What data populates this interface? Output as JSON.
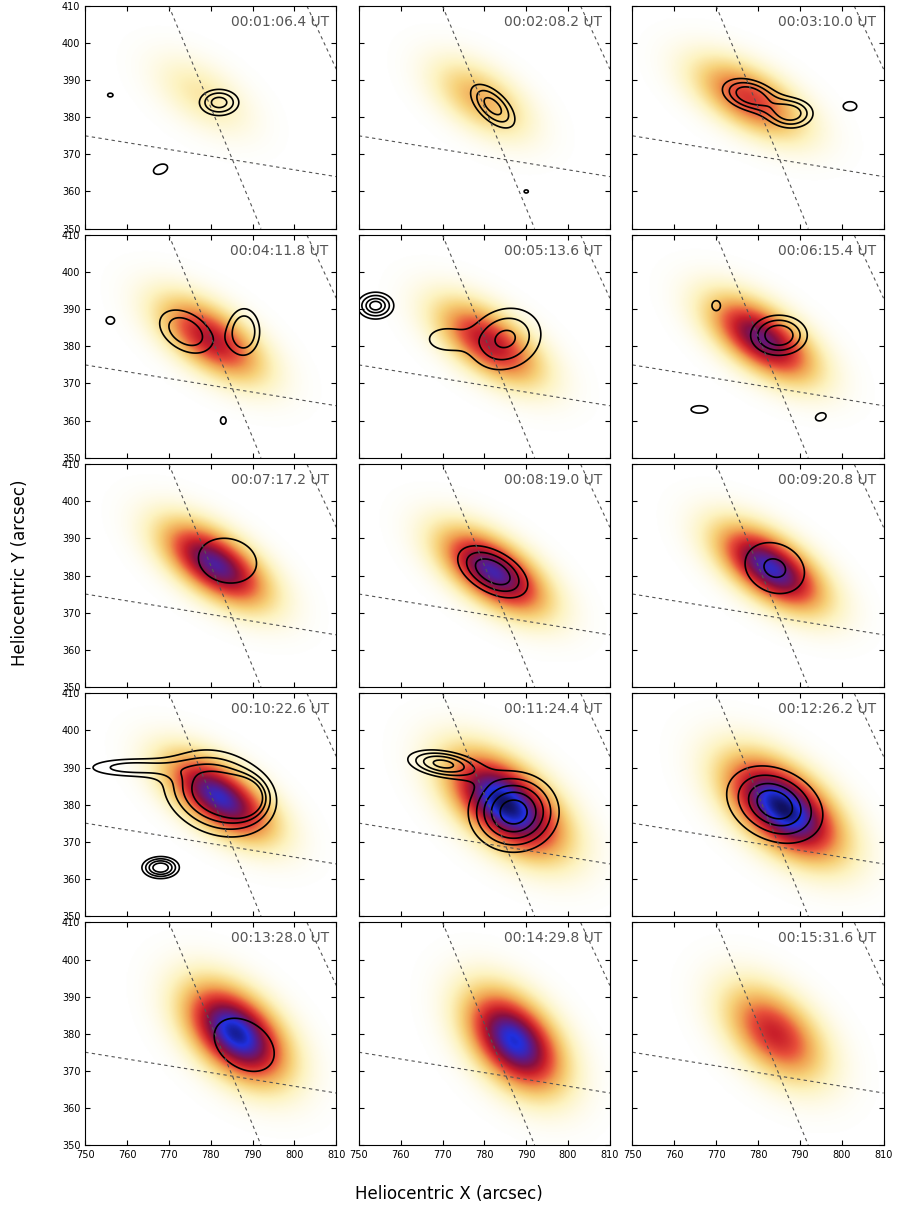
{
  "chart_data": {
    "type": "image_grid",
    "xlabel": "Heliocentric X (arcsec)",
    "ylabel": "Heliocentric Y (arcsec)",
    "xlim": [
      750,
      810
    ],
    "xticks": [
      750,
      760,
      770,
      780,
      790,
      800,
      810
    ],
    "ylim": [
      350,
      410
    ],
    "yticks": [
      350,
      360,
      370,
      380,
      390,
      400,
      410
    ],
    "grid_lines": [
      [
        [
          750,
          375
        ],
        [
          810,
          364
        ]
      ],
      [
        [
          770,
          410
        ],
        [
          792,
          350
        ]
      ],
      [
        [
          803,
          410
        ],
        [
          810,
          393
        ]
      ]
    ],
    "panels": [
      {
        "time": "00:01:06.4 UT",
        "map": [
          {
            "x": 778,
            "y": 386,
            "peak": 0.15,
            "sx": 9,
            "sy": 5,
            "angle": -40
          }
        ],
        "contour_levels": [
          0.5,
          0.7,
          0.9
        ],
        "contours": [
          {
            "x": 782,
            "y": 384,
            "peak": 1,
            "sx": 4,
            "sy": 3,
            "angle": 0
          },
          {
            "x": 768,
            "y": 366,
            "peak": 0.6,
            "sx": 3,
            "sy": 2,
            "angle": 30
          },
          {
            "x": 756,
            "y": 386,
            "peak": 0.55,
            "sx": 1.5,
            "sy": 1.2,
            "angle": 0
          }
        ]
      },
      {
        "time": "00:02:08.2 UT",
        "map": [
          {
            "x": 779,
            "y": 385,
            "peak": 0.3,
            "sx": 9,
            "sy": 5,
            "angle": -40
          }
        ],
        "contour_levels": [
          0.5,
          0.7,
          0.9
        ],
        "contours": [
          {
            "x": 782,
            "y": 383,
            "peak": 1,
            "sx": 6,
            "sy": 3,
            "angle": -50
          },
          {
            "x": 790,
            "y": 360,
            "peak": 0.55,
            "sx": 1.2,
            "sy": 1,
            "angle": 0
          }
        ]
      },
      {
        "time": "00:03:10.0 UT",
        "map": [
          {
            "x": 778,
            "y": 385,
            "peak": 0.5,
            "sx": 10,
            "sy": 5,
            "angle": -35
          }
        ],
        "contour_levels": [
          0.4,
          0.6,
          0.8
        ],
        "contours": [
          {
            "x": 778,
            "y": 386,
            "peak": 1,
            "sx": 5,
            "sy": 3,
            "angle": -20
          },
          {
            "x": 788,
            "y": 381,
            "peak": 0.9,
            "sx": 4,
            "sy": 3,
            "angle": 0
          },
          {
            "x": 802,
            "y": 383,
            "peak": 0.55,
            "sx": 2,
            "sy": 1.5,
            "angle": 0
          }
        ]
      },
      {
        "time": "00:04:11.8 UT",
        "map": [
          {
            "x": 780,
            "y": 382,
            "peak": 0.6,
            "sx": 10,
            "sy": 5,
            "angle": -40
          }
        ],
        "contour_levels": [
          0.4,
          0.6
        ],
        "contours": [
          {
            "x": 774,
            "y": 384,
            "peak": 0.8,
            "sx": 6,
            "sy": 4,
            "angle": -40
          },
          {
            "x": 788,
            "y": 384,
            "peak": 0.85,
            "sx": 3,
            "sy": 5,
            "angle": 0
          },
          {
            "x": 756,
            "y": 387,
            "peak": 0.5,
            "sx": 1.5,
            "sy": 1.5,
            "angle": 0
          },
          {
            "x": 783,
            "y": 360,
            "peak": 0.5,
            "sx": 1,
            "sy": 1.5,
            "angle": 0
          }
        ]
      },
      {
        "time": "00:05:13.6 UT",
        "map": [
          {
            "x": 781,
            "y": 381,
            "peak": 0.6,
            "sx": 10,
            "sy": 5,
            "angle": -40
          }
        ],
        "contour_levels": [
          0.35,
          0.55,
          0.75,
          0.9
        ],
        "contours": [
          {
            "x": 754,
            "y": 391,
            "peak": 1,
            "sx": 3,
            "sy": 2.5,
            "angle": 0
          },
          {
            "x": 785,
            "y": 382,
            "peak": 0.8,
            "sx": 6,
            "sy": 7,
            "angle": -50
          },
          {
            "x": 770,
            "y": 382,
            "peak": 0.45,
            "sx": 4,
            "sy": 3,
            "angle": 0
          }
        ]
      },
      {
        "time": "00:06:15.4 UT",
        "map": [
          {
            "x": 781,
            "y": 382,
            "peak": 0.75,
            "sx": 10,
            "sy": 5,
            "angle": -40
          }
        ],
        "contour_levels": [
          0.4,
          0.6,
          0.8
        ],
        "contours": [
          {
            "x": 785,
            "y": 383,
            "peak": 1,
            "sx": 5,
            "sy": 4,
            "angle": 0
          },
          {
            "x": 770,
            "y": 391,
            "peak": 0.5,
            "sx": 1.5,
            "sy": 2,
            "angle": 0
          },
          {
            "x": 766,
            "y": 363,
            "peak": 0.5,
            "sx": 3,
            "sy": 1.5,
            "angle": 0
          },
          {
            "x": 795,
            "y": 361,
            "peak": 0.5,
            "sx": 2,
            "sy": 1.5,
            "angle": 30
          }
        ]
      },
      {
        "time": "00:07:17.2 UT",
        "map": [
          {
            "x": 781,
            "y": 383,
            "peak": 0.8,
            "sx": 10,
            "sy": 5,
            "angle": -40
          }
        ],
        "contour_levels": [
          0.5
        ],
        "contours": [
          {
            "x": 784,
            "y": 384,
            "peak": 1,
            "sx": 6,
            "sy": 5,
            "angle": -20
          }
        ]
      },
      {
        "time": "00:08:19.0 UT",
        "map": [
          {
            "x": 782,
            "y": 381,
            "peak": 0.82,
            "sx": 10,
            "sy": 5,
            "angle": -40
          }
        ],
        "contour_levels": [
          0.4,
          0.6,
          0.8
        ],
        "contours": [
          {
            "x": 782,
            "y": 381,
            "peak": 1,
            "sx": 7,
            "sy": 4,
            "angle": -35
          }
        ]
      },
      {
        "time": "00:09:20.8 UT",
        "map": [
          {
            "x": 783,
            "y": 382,
            "peak": 0.85,
            "sx": 10,
            "sy": 5,
            "angle": -40
          }
        ],
        "contour_levels": [
          0.45,
          0.9
        ],
        "contours": [
          {
            "x": 784,
            "y": 382,
            "peak": 1,
            "sx": 6,
            "sy": 5,
            "angle": -40
          }
        ]
      },
      {
        "time": "00:10:22.6 UT",
        "map": [
          {
            "x": 782,
            "y": 382,
            "peak": 0.85,
            "sx": 10,
            "sy": 5,
            "angle": -40
          }
        ],
        "contour_levels": [
          0.3,
          0.45,
          0.6,
          0.75
        ],
        "contours": [
          {
            "x": 782,
            "y": 383,
            "peak": 1,
            "sx": 9,
            "sy": 7,
            "angle": -30
          },
          {
            "x": 768,
            "y": 363,
            "peak": 0.9,
            "sx": 3,
            "sy": 2,
            "angle": 0
          },
          {
            "x": 760,
            "y": 390,
            "peak": 0.5,
            "sx": 8,
            "sy": 2,
            "angle": 0
          },
          {
            "x": 788,
            "y": 382,
            "peak": 0.8,
            "sx": 3,
            "sy": 3,
            "angle": 0
          }
        ]
      },
      {
        "time": "00:11:24.4 UT",
        "map": [
          {
            "x": 785,
            "y": 380,
            "peak": 1.0,
            "sx": 11,
            "sy": 6,
            "angle": -45
          }
        ],
        "contour_levels": [
          0.3,
          0.45,
          0.6,
          0.75,
          0.9
        ],
        "contours": [
          {
            "x": 787,
            "y": 378,
            "peak": 1,
            "sx": 7,
            "sy": 7,
            "angle": -40
          },
          {
            "x": 770,
            "y": 391,
            "peak": 0.8,
            "sx": 6,
            "sy": 2.5,
            "angle": -10
          }
        ]
      },
      {
        "time": "00:12:26.2 UT",
        "map": [
          {
            "x": 786,
            "y": 379,
            "peak": 1.0,
            "sx": 11,
            "sy": 6,
            "angle": -45
          }
        ],
        "contour_levels": [
          0.3,
          0.5,
          0.7,
          0.85
        ],
        "contours": [
          {
            "x": 784,
            "y": 380,
            "peak": 1,
            "sx": 8,
            "sy": 6,
            "angle": -35
          }
        ]
      },
      {
        "time": "00:13:28.0 UT",
        "map": [
          {
            "x": 786,
            "y": 380,
            "peak": 0.95,
            "sx": 10,
            "sy": 6,
            "angle": -50
          }
        ],
        "contour_levels": [
          0.5
        ],
        "contours": [
          {
            "x": 788,
            "y": 377,
            "peak": 1,
            "sx": 7,
            "sy": 5,
            "angle": -45
          }
        ]
      },
      {
        "time": "00:14:29.8 UT",
        "map": [
          {
            "x": 787,
            "y": 378,
            "peak": 0.9,
            "sx": 10,
            "sy": 6,
            "angle": -55
          }
        ],
        "contour_levels": [],
        "contours": []
      },
      {
        "time": "00:15:31.6 UT",
        "map": [
          {
            "x": 784,
            "y": 380,
            "peak": 0.55,
            "sx": 10,
            "sy": 6,
            "angle": -50
          }
        ],
        "contour_levels": [],
        "contours": []
      }
    ]
  }
}
